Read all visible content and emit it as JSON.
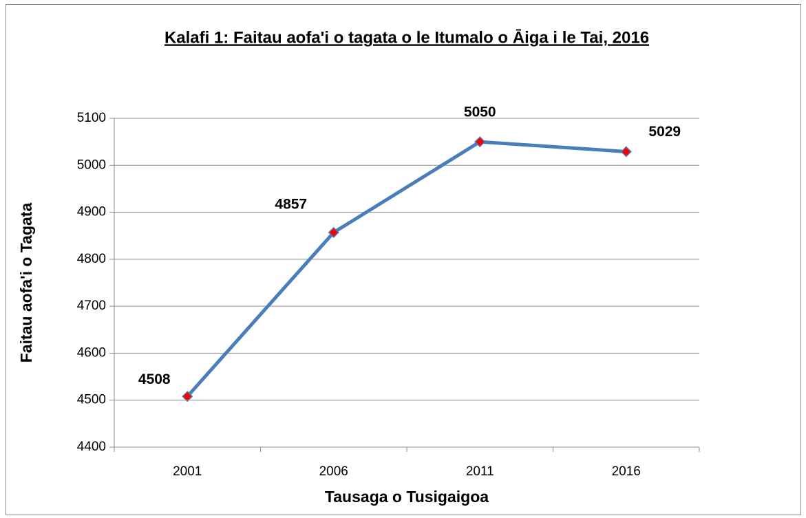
{
  "chart_data": {
    "type": "line",
    "title": "Kalafi 1: Faitau aofa'i o tagata o le Itumalo o Āiga i le Tai, 2016",
    "x_label": "Tausaga o Tusigaigoa",
    "y_label": "Faitau aofa'i o Tagata",
    "categories": [
      "2001",
      "2006",
      "2011",
      "2016"
    ],
    "series": [
      {
        "name": "Faitau aofa'i o Tagata",
        "color": "#4a7ebb",
        "marker_color": "#ff0000",
        "values": [
          4508,
          4857,
          5050,
          5029
        ]
      }
    ],
    "ylim": [
      4400,
      5100
    ],
    "yticks": [
      4400,
      4500,
      4600,
      4700,
      4800,
      4900,
      5000,
      5100
    ],
    "grid": true,
    "legend": false
  }
}
